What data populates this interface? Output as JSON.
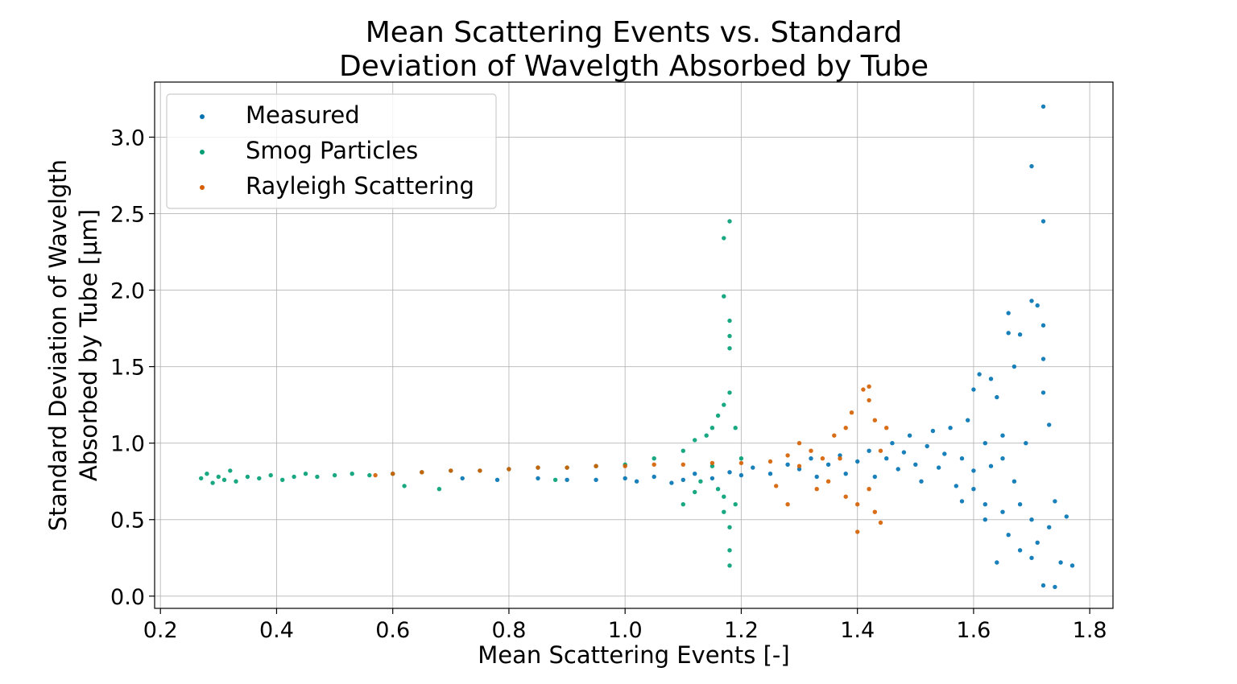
{
  "chart_data": {
    "type": "scatter",
    "title": [
      "Mean Scattering Events vs. Standard",
      "Deviation of Wavelgth Absorbed by Tube"
    ],
    "xlabel": "Mean Scattering Events [-]",
    "ylabel": [
      "Standard Deviation of Wavelgth",
      "Absorbed by Tube [μm]"
    ],
    "xlim": [
      0.19,
      1.84
    ],
    "ylim": [
      -0.08,
      3.36
    ],
    "x_ticks": [
      0.2,
      0.4,
      0.6,
      0.8,
      1.0,
      1.2,
      1.4,
      1.6,
      1.8
    ],
    "x_tick_labels": [
      "0.2",
      "0.4",
      "0.6",
      "0.8",
      "1.0",
      "1.2",
      "1.4",
      "1.6",
      "1.8"
    ],
    "y_ticks": [
      0.0,
      0.5,
      1.0,
      1.5,
      2.0,
      2.5,
      3.0
    ],
    "y_tick_labels": [
      "0.0",
      "0.5",
      "1.0",
      "1.5",
      "2.0",
      "2.5",
      "3.0"
    ],
    "grid": true,
    "legend_position": "top-left",
    "series": [
      {
        "name": "Measured",
        "color": "#0072b2",
        "points": [
          [
            0.72,
            0.77
          ],
          [
            0.78,
            0.76
          ],
          [
            0.85,
            0.77
          ],
          [
            0.9,
            0.76
          ],
          [
            0.95,
            0.76
          ],
          [
            1.0,
            0.77
          ],
          [
            1.02,
            0.75
          ],
          [
            1.05,
            0.78
          ],
          [
            1.08,
            0.74
          ],
          [
            1.1,
            0.76
          ],
          [
            1.12,
            0.8
          ],
          [
            1.15,
            0.77
          ],
          [
            1.18,
            0.81
          ],
          [
            1.2,
            0.79
          ],
          [
            1.22,
            0.84
          ],
          [
            1.25,
            0.8
          ],
          [
            1.28,
            0.86
          ],
          [
            1.3,
            0.83
          ],
          [
            1.32,
            0.9
          ],
          [
            1.33,
            0.78
          ],
          [
            1.35,
            0.86
          ],
          [
            1.37,
            0.92
          ],
          [
            1.38,
            0.8
          ],
          [
            1.4,
            0.88
          ],
          [
            1.42,
            0.95
          ],
          [
            1.43,
            0.78
          ],
          [
            1.45,
            0.9
          ],
          [
            1.46,
            1.0
          ],
          [
            1.47,
            0.83
          ],
          [
            1.48,
            0.94
          ],
          [
            1.49,
            1.05
          ],
          [
            1.5,
            0.86
          ],
          [
            1.51,
            0.75
          ],
          [
            1.52,
            0.98
          ],
          [
            1.53,
            1.08
          ],
          [
            1.54,
            0.84
          ],
          [
            1.55,
            0.93
          ],
          [
            1.56,
            1.1
          ],
          [
            1.57,
            0.72
          ],
          [
            1.58,
            0.9
          ],
          [
            1.59,
            1.15
          ],
          [
            1.6,
            0.82
          ],
          [
            1.6,
            1.35
          ],
          [
            1.61,
            1.45
          ],
          [
            1.62,
            1.0
          ],
          [
            1.62,
            0.6
          ],
          [
            1.63,
            1.42
          ],
          [
            1.63,
            0.85
          ],
          [
            1.64,
            0.22
          ],
          [
            1.64,
            1.3
          ],
          [
            1.65,
            0.55
          ],
          [
            1.65,
            1.05
          ],
          [
            1.66,
            1.85
          ],
          [
            1.66,
            1.72
          ],
          [
            1.66,
            0.4
          ],
          [
            1.67,
            1.5
          ],
          [
            1.67,
            0.75
          ],
          [
            1.68,
            1.71
          ],
          [
            1.68,
            0.3
          ],
          [
            1.69,
            1.0
          ],
          [
            1.7,
            0.5
          ],
          [
            1.7,
            1.93
          ],
          [
            1.7,
            2.81
          ],
          [
            1.71,
            1.9
          ],
          [
            1.71,
            0.35
          ],
          [
            1.72,
            3.2
          ],
          [
            1.72,
            2.45
          ],
          [
            1.72,
            1.77
          ],
          [
            1.72,
            1.55
          ],
          [
            1.72,
            1.33
          ],
          [
            1.72,
            0.07
          ],
          [
            1.73,
            0.45
          ],
          [
            1.73,
            1.12
          ],
          [
            1.74,
            0.62
          ],
          [
            1.74,
            0.06
          ],
          [
            1.75,
            0.22
          ],
          [
            1.76,
            0.52
          ],
          [
            1.77,
            0.2
          ],
          [
            1.58,
            0.62
          ],
          [
            1.6,
            0.7
          ],
          [
            1.62,
            0.5
          ],
          [
            1.65,
            0.9
          ],
          [
            1.68,
            0.6
          ],
          [
            1.7,
            0.25
          ]
        ]
      },
      {
        "name": "Smog Particles",
        "color": "#009e73",
        "points": [
          [
            0.27,
            0.77
          ],
          [
            0.28,
            0.8
          ],
          [
            0.29,
            0.74
          ],
          [
            0.3,
            0.78
          ],
          [
            0.31,
            0.76
          ],
          [
            0.32,
            0.82
          ],
          [
            0.33,
            0.75
          ],
          [
            0.35,
            0.78
          ],
          [
            0.37,
            0.77
          ],
          [
            0.39,
            0.79
          ],
          [
            0.41,
            0.76
          ],
          [
            0.43,
            0.78
          ],
          [
            0.45,
            0.8
          ],
          [
            0.47,
            0.78
          ],
          [
            0.5,
            0.79
          ],
          [
            0.53,
            0.8
          ],
          [
            0.56,
            0.79
          ],
          [
            0.6,
            0.8
          ],
          [
            0.65,
            0.81
          ],
          [
            0.7,
            0.82
          ],
          [
            0.75,
            0.82
          ],
          [
            0.8,
            0.83
          ],
          [
            0.85,
            0.84
          ],
          [
            0.9,
            0.84
          ],
          [
            0.95,
            0.85
          ],
          [
            1.0,
            0.86
          ],
          [
            1.05,
            0.9
          ],
          [
            1.1,
            0.95
          ],
          [
            1.12,
            1.02
          ],
          [
            1.14,
            1.05
          ],
          [
            1.15,
            1.1
          ],
          [
            1.16,
            1.18
          ],
          [
            1.17,
            1.25
          ],
          [
            1.17,
            2.34
          ],
          [
            1.17,
            1.96
          ],
          [
            1.18,
            2.45
          ],
          [
            1.18,
            1.8
          ],
          [
            1.18,
            1.7
          ],
          [
            1.18,
            1.62
          ],
          [
            1.18,
            1.33
          ],
          [
            1.18,
            0.45
          ],
          [
            1.18,
            0.3
          ],
          [
            1.18,
            0.2
          ],
          [
            1.17,
            0.55
          ],
          [
            1.17,
            0.65
          ],
          [
            1.16,
            0.7
          ],
          [
            1.15,
            0.85
          ],
          [
            1.19,
            1.1
          ],
          [
            1.19,
            0.6
          ],
          [
            1.2,
            0.9
          ],
          [
            1.1,
            0.6
          ],
          [
            1.12,
            0.68
          ],
          [
            1.13,
            0.75
          ],
          [
            0.62,
            0.72
          ],
          [
            0.68,
            0.7
          ],
          [
            0.88,
            0.76
          ]
        ]
      },
      {
        "name": "Rayleigh Scattering",
        "color": "#d55e00",
        "points": [
          [
            0.57,
            0.79
          ],
          [
            0.6,
            0.8
          ],
          [
            0.65,
            0.81
          ],
          [
            0.7,
            0.82
          ],
          [
            0.75,
            0.82
          ],
          [
            0.8,
            0.83
          ],
          [
            0.85,
            0.84
          ],
          [
            0.9,
            0.84
          ],
          [
            0.95,
            0.85
          ],
          [
            1.0,
            0.85
          ],
          [
            1.05,
            0.86
          ],
          [
            1.1,
            0.86
          ],
          [
            1.15,
            0.87
          ],
          [
            1.2,
            0.87
          ],
          [
            1.25,
            0.88
          ],
          [
            1.28,
            0.92
          ],
          [
            1.3,
            0.85
          ],
          [
            1.32,
            0.95
          ],
          [
            1.34,
            0.9
          ],
          [
            1.35,
            0.75
          ],
          [
            1.36,
            1.05
          ],
          [
            1.37,
            0.9
          ],
          [
            1.38,
            1.1
          ],
          [
            1.39,
            1.2
          ],
          [
            1.4,
            0.42
          ],
          [
            1.4,
            0.6
          ],
          [
            1.41,
            1.35
          ],
          [
            1.42,
            1.37
          ],
          [
            1.42,
            1.28
          ],
          [
            1.42,
            0.7
          ],
          [
            1.43,
            1.15
          ],
          [
            1.43,
            0.55
          ],
          [
            1.44,
            0.48
          ],
          [
            1.44,
            0.95
          ],
          [
            1.45,
            1.1
          ],
          [
            1.28,
            0.6
          ],
          [
            1.33,
            0.7
          ],
          [
            1.3,
            1.0
          ],
          [
            1.26,
            0.72
          ],
          [
            1.38,
            0.65
          ]
        ]
      }
    ]
  }
}
